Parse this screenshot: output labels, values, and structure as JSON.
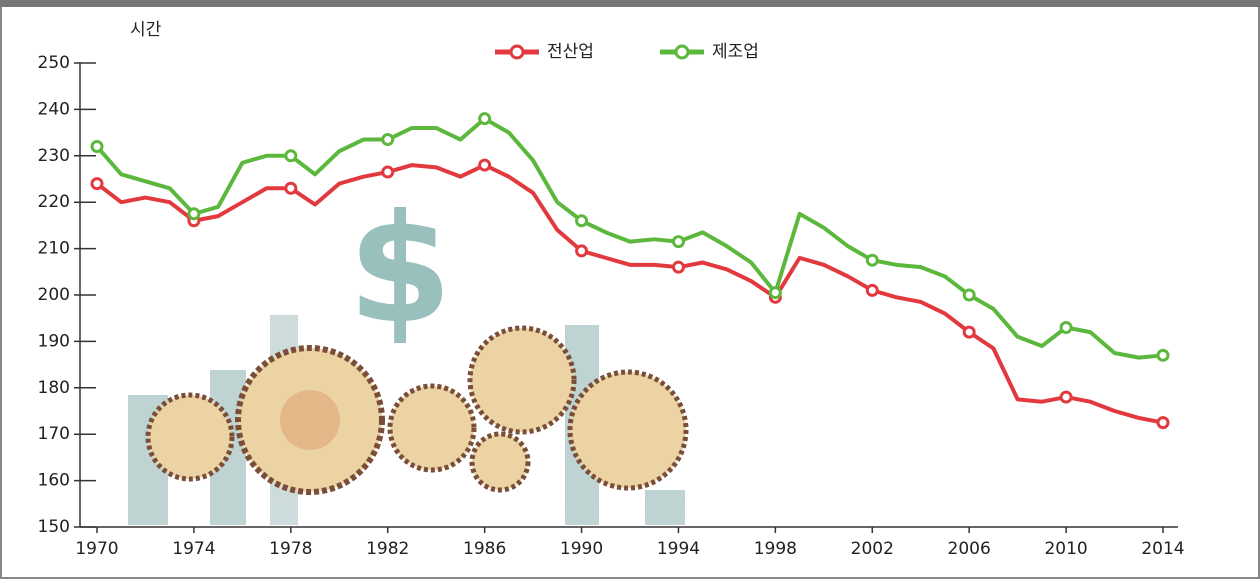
{
  "chart_data": {
    "type": "line",
    "y_label": "시간",
    "x": [
      1970,
      1971,
      1972,
      1973,
      1974,
      1975,
      1976,
      1977,
      1978,
      1979,
      1980,
      1981,
      1982,
      1983,
      1984,
      1985,
      1986,
      1987,
      1988,
      1989,
      1990,
      1991,
      1992,
      1993,
      1994,
      1995,
      1996,
      1997,
      1998,
      1999,
      2000,
      2001,
      2002,
      2003,
      2004,
      2005,
      2006,
      2007,
      2008,
      2009,
      2010,
      2011,
      2012,
      2013,
      2014
    ],
    "series": [
      {
        "name": "전산업",
        "color": "#e2393f",
        "values": [
          224,
          220,
          221,
          220,
          216,
          217,
          220,
          223,
          223,
          219.5,
          224,
          225.5,
          226.5,
          228,
          227.5,
          225.5,
          228,
          225.5,
          222,
          214,
          209.5,
          208,
          206.5,
          206.5,
          206,
          207,
          205.5,
          203,
          199.5,
          208,
          206.5,
          204,
          201,
          199.5,
          198.5,
          196,
          192,
          188.5,
          177.5,
          177,
          178,
          177,
          175,
          173.5,
          172.5
        ]
      },
      {
        "name": "제조업",
        "color": "#5cb83d",
        "values": [
          232,
          226,
          224.5,
          223,
          217.5,
          219,
          228.5,
          230,
          230,
          226,
          231,
          233.5,
          233.5,
          236,
          236,
          233.5,
          238,
          235,
          229,
          220,
          216,
          213.5,
          211.5,
          212,
          211.5,
          213.5,
          210.5,
          207,
          200.5,
          217.5,
          214.5,
          210.5,
          207.5,
          206.5,
          206,
          204,
          200,
          197,
          191,
          189,
          193,
          192,
          187.5,
          186.5,
          187
        ]
      }
    ],
    "xlim": [
      1970,
      2014
    ],
    "xticks": [
      1970,
      1974,
      1978,
      1982,
      1986,
      1990,
      1994,
      1998,
      2002,
      2006,
      2010,
      2014
    ],
    "ylim": [
      150,
      250
    ],
    "yticks": [
      150,
      160,
      170,
      180,
      190,
      200,
      210,
      220,
      230,
      240,
      250
    ],
    "legend": "top"
  }
}
